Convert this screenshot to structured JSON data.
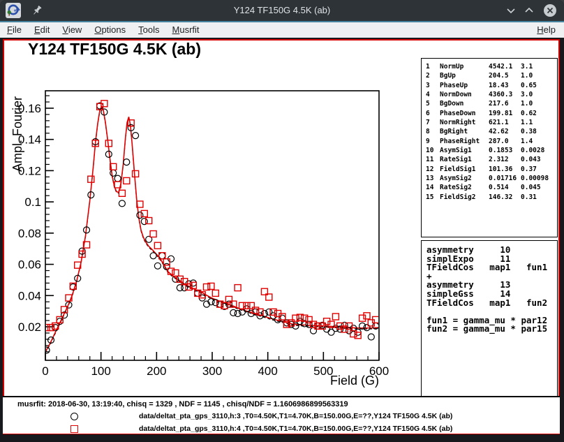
{
  "window": {
    "title": "Y124 TF150G 4.5K (ab)"
  },
  "menu": {
    "items": [
      "File",
      "Edit",
      "View",
      "Options",
      "Tools",
      "Musrfit"
    ],
    "right_item": "Help"
  },
  "plot": {
    "title": "Y124 TF150G 4.5K (ab)",
    "xlabel": "Field (G)",
    "ylabel": "Ampl. Fourier"
  },
  "param_table": {
    "rows": [
      [
        "1",
        "NormUp",
        "4542.1",
        "3.1"
      ],
      [
        "2",
        "BgUp",
        "204.5",
        "1.0"
      ],
      [
        "3",
        "PhaseUp",
        "18.43",
        "0.65"
      ],
      [
        "4",
        "NormDown",
        "4360.3",
        "3.0"
      ],
      [
        "5",
        "BgDown",
        "217.6",
        "1.0"
      ],
      [
        "6",
        "PhaseDown",
        "199.81",
        "0.62"
      ],
      [
        "7",
        "NormRight",
        "621.1",
        "1.1"
      ],
      [
        "8",
        "BgRight",
        "42.62",
        "0.38"
      ],
      [
        "9",
        "PhaseRight",
        "287.0",
        "1.4"
      ],
      [
        "10",
        "AsymSig1",
        "0.1853",
        "0.0028"
      ],
      [
        "11",
        "RateSig1",
        "2.312",
        "0.043"
      ],
      [
        "12",
        "FieldSig1",
        "101.36",
        "0.37"
      ],
      [
        "13",
        "AsymSig2",
        "0.01716",
        "0.00098"
      ],
      [
        "14",
        "RateSig2",
        "0.514",
        "0.045"
      ],
      [
        "15",
        "FieldSig2",
        "146.32",
        "0.31"
      ]
    ]
  },
  "theory_box": {
    "text": "asymmetry     10\nsimplExpo     11\nTFieldCos   map1   fun1\n+\nasymmetry     13\nsimpleGss     14\nTFieldCos   map1   fun2\n\nfun1 = gamma_mu * par12\nfun2 = gamma_mu * par15"
  },
  "footer": {
    "stats": "musrfit: 2018-06-30, 13:19:40, chisq = 1329 , NDF = 1145 , chisq/NDF = 1.1606986899563319",
    "legend": [
      {
        "marker": "circle",
        "color": "#000000",
        "label": "data/deltat_pta_gps_3110,h:3 ,T0=4.50K,T1=4.70K,B=150.00G,E=??,Y124 TF150G 4.5K (ab)"
      },
      {
        "marker": "square",
        "color": "#e00000",
        "label": "data/deltat_pta_gps_3110,h:4 ,T0=4.50K,T1=4.70K,B=150.00G,E=??,Y124 TF150G 4.5K (ab)"
      }
    ]
  },
  "colors": {
    "canvas_highlight": "#d40000",
    "fit_line": "#e00000",
    "marker_series2": "#e00000",
    "marker_series1": "#000000",
    "titlebar": "#2e3338",
    "menubar": "#eff0f1"
  },
  "chart_data": {
    "type": "scatter",
    "title": "Y124 TF150G 4.5K (ab)",
    "xlabel": "Field (G)",
    "ylabel": "Ampl. Fourier",
    "xlim": [
      0,
      600
    ],
    "ylim": [
      -0.0015,
      0.1712
    ],
    "x_ticks": [
      0,
      100,
      200,
      300,
      400,
      500,
      600
    ],
    "y_ticks": [
      0.02,
      0.04,
      0.06,
      0.08,
      0.1,
      0.12,
      0.14,
      0.16
    ],
    "x_minor_step": 20,
    "y_minor_step": 0.004,
    "grid": false,
    "legend_position": "bottom-pad",
    "series": [
      {
        "name": "data/deltat_pta_gps_3110,h:3",
        "marker": "circle",
        "color": "#000000",
        "x": [
          2,
          10,
          18,
          26,
          34,
          42,
          50,
          58,
          66,
          74,
          82,
          90,
          98,
          106,
          114,
          122,
          130,
          138,
          146,
          154,
          162,
          170,
          178,
          186,
          194,
          202,
          210,
          218,
          226,
          234,
          242,
          250,
          258,
          266,
          274,
          282,
          290,
          298,
          306,
          314,
          322,
          330,
          338,
          346,
          354,
          362,
          370,
          378,
          386,
          394,
          402,
          410,
          418,
          426,
          434,
          442,
          450,
          458,
          466,
          474,
          482,
          490,
          498,
          506,
          514,
          522,
          530,
          538,
          546,
          554,
          562,
          570,
          578,
          586,
          594
        ],
        "y": [
          0.005,
          0.0115,
          0.0195,
          0.0235,
          0.0275,
          0.034,
          0.0455,
          0.051,
          0.0685,
          0.082,
          0.1045,
          0.1385,
          0.1615,
          0.1575,
          0.1305,
          0.1185,
          0.115,
          0.099,
          0.1255,
          0.1475,
          0.1425,
          0.0915,
          0.0875,
          0.076,
          0.0655,
          0.059,
          0.0655,
          0.0585,
          0.0635,
          0.0505,
          0.045,
          0.045,
          0.0475,
          0.048,
          0.0415,
          0.0385,
          0.0345,
          0.036,
          0.0355,
          0.0345,
          0.033,
          0.0345,
          0.029,
          0.0285,
          0.0295,
          0.0315,
          0.0285,
          0.0295,
          0.027,
          0.0285,
          0.0295,
          0.027,
          0.0245,
          0.0255,
          0.0225,
          0.0215,
          0.0205,
          0.0235,
          0.022,
          0.0215,
          0.0175,
          0.0205,
          0.021,
          0.0185,
          0.0165,
          0.019,
          0.0185,
          0.021,
          0.0175,
          0.019,
          0.0165,
          0.0205,
          0.0195,
          0.0135,
          0.0205
        ]
      },
      {
        "name": "data/deltat_pta_gps_3110,h:4",
        "marker": "square",
        "color": "#e00000",
        "x": [
          2,
          10,
          18,
          26,
          34,
          42,
          50,
          58,
          66,
          74,
          82,
          90,
          98,
          106,
          114,
          122,
          130,
          138,
          146,
          154,
          162,
          170,
          178,
          186,
          194,
          202,
          210,
          218,
          226,
          234,
          242,
          250,
          258,
          266,
          274,
          282,
          290,
          298,
          306,
          314,
          322,
          330,
          338,
          346,
          354,
          362,
          370,
          378,
          386,
          394,
          402,
          410,
          418,
          426,
          434,
          442,
          450,
          458,
          466,
          474,
          482,
          490,
          498,
          506,
          514,
          522,
          530,
          538,
          546,
          554,
          562,
          570,
          578,
          586,
          594
        ],
        "y": [
          0.0195,
          0.0195,
          0.0205,
          0.0245,
          0.031,
          0.0385,
          0.046,
          0.0595,
          0.0665,
          0.0725,
          0.1145,
          0.1375,
          0.161,
          0.163,
          0.1375,
          0.1225,
          0.111,
          0.1055,
          0.1135,
          0.1505,
          0.118,
          0.0985,
          0.0925,
          0.088,
          0.0795,
          0.072,
          0.0655,
          0.0615,
          0.0555,
          0.0545,
          0.0505,
          0.049,
          0.0455,
          0.0465,
          0.0415,
          0.0405,
          0.0455,
          0.046,
          0.0415,
          0.0345,
          0.0335,
          0.0375,
          0.0345,
          0.045,
          0.0335,
          0.0335,
          0.0335,
          0.0305,
          0.0295,
          0.0425,
          0.039,
          0.0295,
          0.0285,
          0.0265,
          0.0215,
          0.0225,
          0.0255,
          0.026,
          0.0255,
          0.0245,
          0.0215,
          0.0205,
          0.0205,
          0.0235,
          0.0215,
          0.0265,
          0.0205,
          0.0185,
          0.0205,
          0.0155,
          0.0145,
          0.0255,
          0.027,
          0.0225,
          0.0245
        ]
      }
    ],
    "fit_curve": {
      "color": "#e00000",
      "secondary_color": "#000000",
      "x": [
        0,
        8,
        16,
        24,
        32,
        40,
        48,
        56,
        64,
        72,
        80,
        86,
        90,
        94,
        98,
        101,
        104,
        108,
        112,
        116,
        120,
        124,
        128,
        132,
        136,
        140,
        144,
        147,
        150,
        153,
        156,
        160,
        164,
        168,
        172,
        176,
        180,
        186,
        192,
        198,
        204,
        212,
        220,
        228,
        236,
        244,
        252,
        260,
        270,
        280,
        290,
        300,
        312,
        324,
        336,
        348,
        360,
        372,
        384,
        396,
        408,
        420,
        432,
        444,
        456,
        468,
        480,
        492,
        504,
        516,
        528,
        540,
        552,
        564,
        576,
        588,
        600
      ],
      "y": [
        0.004,
        0.009,
        0.015,
        0.021,
        0.027,
        0.033,
        0.04,
        0.049,
        0.061,
        0.078,
        0.101,
        0.122,
        0.138,
        0.15,
        0.159,
        0.161,
        0.159,
        0.151,
        0.14,
        0.128,
        0.117,
        0.11,
        0.1065,
        0.1062,
        0.112,
        0.124,
        0.141,
        0.151,
        0.1545,
        0.149,
        0.137,
        0.119,
        0.102,
        0.09,
        0.082,
        0.0775,
        0.0745,
        0.0715,
        0.0695,
        0.0672,
        0.0648,
        0.0605,
        0.0555,
        0.053,
        0.051,
        0.049,
        0.047,
        0.0455,
        0.0438,
        0.0423,
        0.0402,
        0.0383,
        0.0366,
        0.0352,
        0.0336,
        0.0318,
        0.0303,
        0.029,
        0.0277,
        0.0264,
        0.0251,
        0.024,
        0.0229,
        0.0218,
        0.0213,
        0.0211,
        0.0209,
        0.0207,
        0.0205,
        0.0202,
        0.0199,
        0.0197,
        0.0194,
        0.0192,
        0.0192,
        0.0193,
        0.0195
      ]
    }
  }
}
